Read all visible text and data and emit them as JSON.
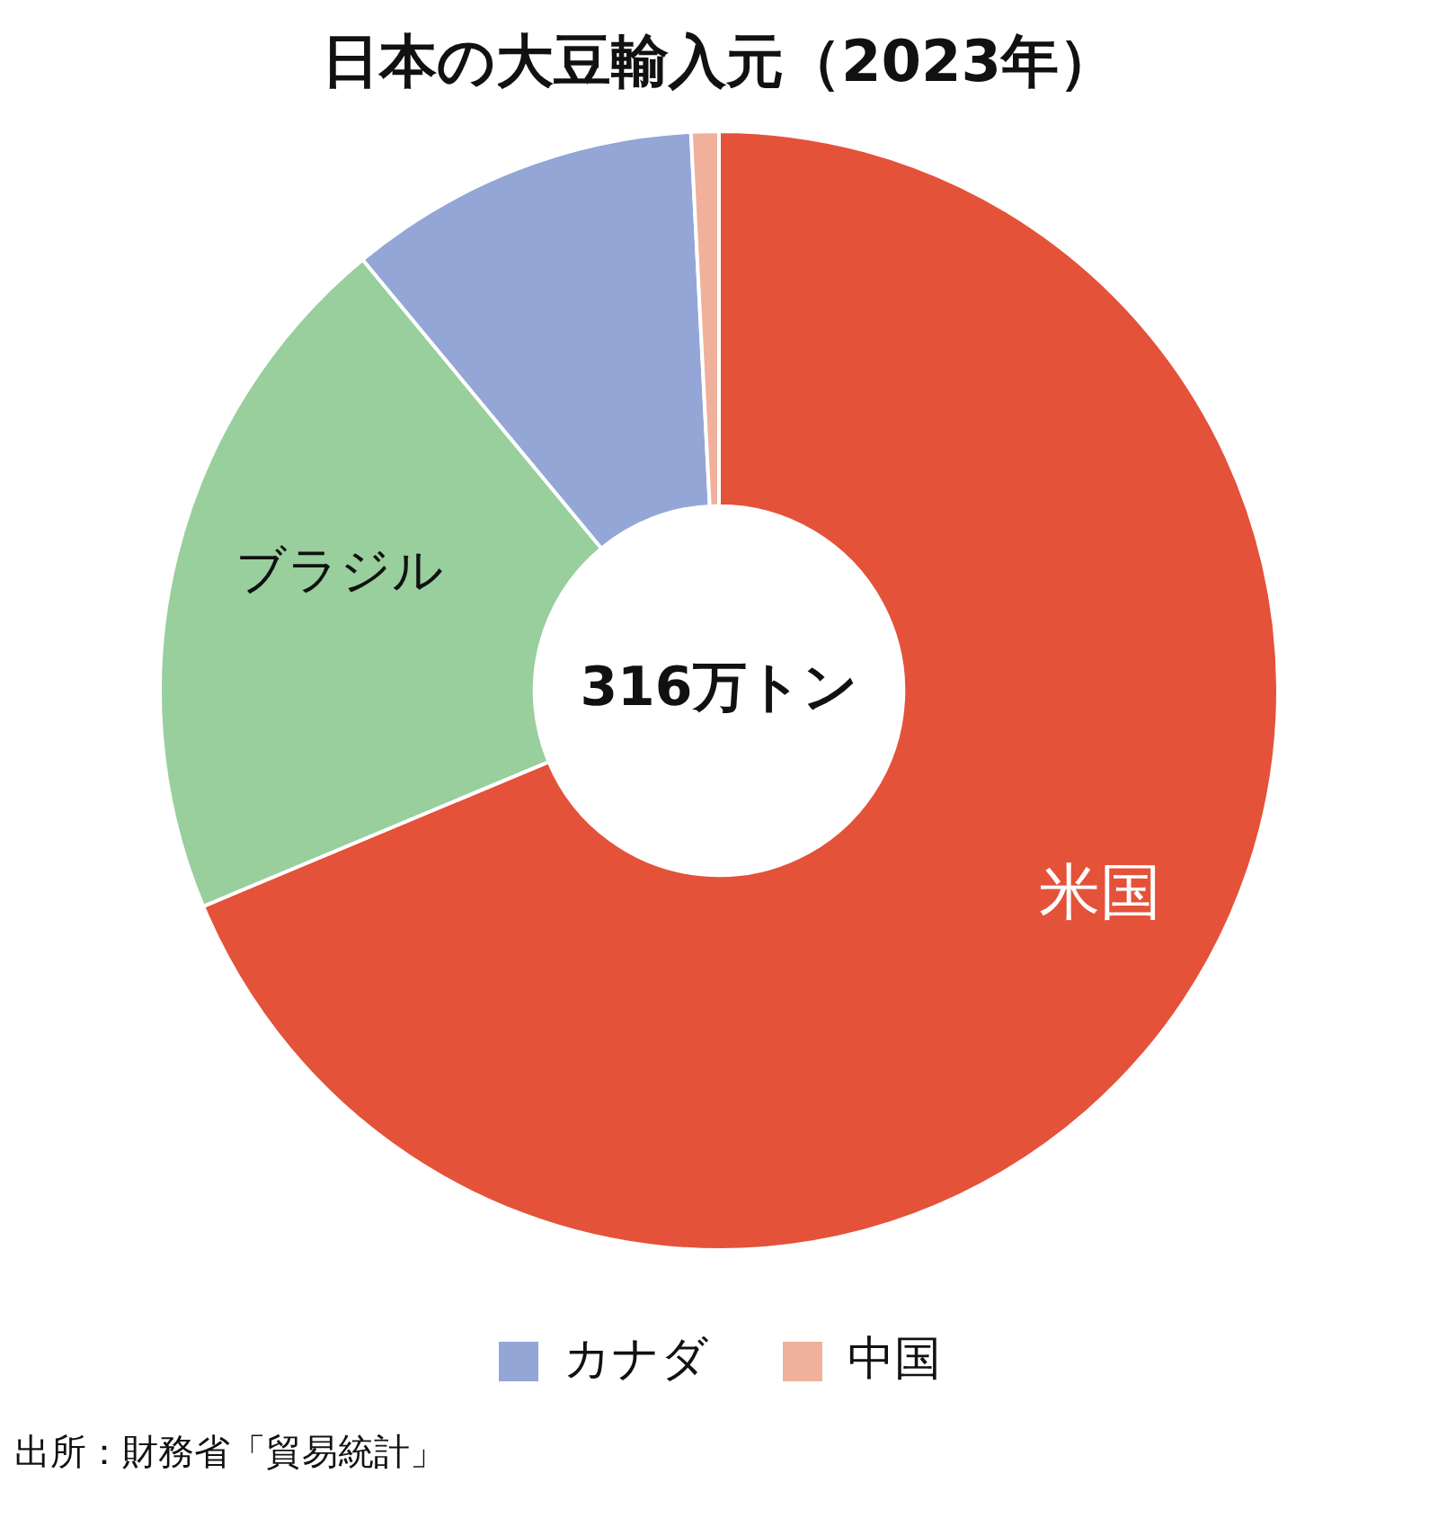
{
  "chart_data": {
    "type": "donut",
    "title": "日本の大豆輸入元（2023年）",
    "categories": [
      "米国",
      "ブラジル",
      "カナダ",
      "中国"
    ],
    "values": [
      68.7,
      20.3,
      10.2,
      0.8
    ],
    "colors": [
      "#e4523a",
      "#98cf9d",
      "#94a6d6",
      "#f0b09c"
    ],
    "legend": "bottom",
    "annotations": [
      "316万トン",
      "出所：財務省「貿易統計」"
    ]
  }
}
